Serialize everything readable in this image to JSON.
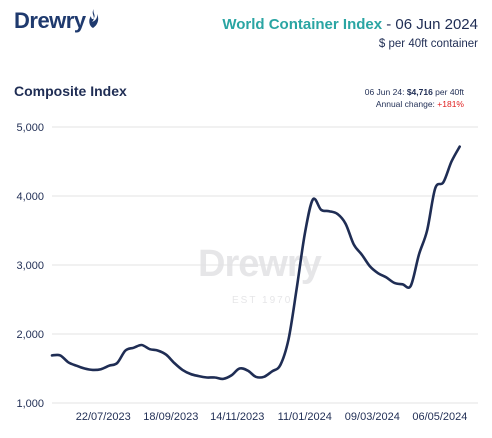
{
  "brand": {
    "logo_text": "Drewry",
    "flame_icon": "flame-icon"
  },
  "header": {
    "title": "World Container Index",
    "title_sep": " - ",
    "title_date": "06 Jun 2024",
    "subtitle": "$ per 40ft container"
  },
  "section": {
    "title": "Composite Index"
  },
  "info": {
    "date": "06 Jun 24:",
    "value": "$4,716",
    "unit": " per 40ft",
    "change_label": "Annual change:",
    "change_value": "+181%"
  },
  "watermark": {
    "text": "Drewry",
    "sub": "EST 1970"
  },
  "colors": {
    "accent": "#2aa5a3",
    "line": "#1f2d54",
    "positive": "#e02020",
    "grid": "#e3e3e3"
  },
  "chart_data": {
    "type": "line",
    "title": "Composite Index",
    "xlabel": "",
    "ylabel": "",
    "ylim": [
      1000,
      5000
    ],
    "yticks": [
      "5,000",
      "4,000",
      "3,000",
      "2,000",
      "1,000"
    ],
    "ytick_values": [
      5000,
      4000,
      3000,
      2000,
      1000
    ],
    "xtick_labels": [
      "22/07/2023",
      "18/09/2023",
      "14/11/2023",
      "11/01/2024",
      "09/03/2024",
      "06/05/2024"
    ],
    "xlim": [
      "2023-06-08",
      "2024-06-06"
    ],
    "series": [
      {
        "name": "Composite Index",
        "points": [
          [
            "2023-06-08",
            1690
          ],
          [
            "2023-06-15",
            1690
          ],
          [
            "2023-06-22",
            1590
          ],
          [
            "2023-06-29",
            1540
          ],
          [
            "2023-07-06",
            1500
          ],
          [
            "2023-07-13",
            1480
          ],
          [
            "2023-07-20",
            1490
          ],
          [
            "2023-07-27",
            1540
          ],
          [
            "2023-08-03",
            1580
          ],
          [
            "2023-08-10",
            1760
          ],
          [
            "2023-08-17",
            1800
          ],
          [
            "2023-08-24",
            1840
          ],
          [
            "2023-08-31",
            1780
          ],
          [
            "2023-09-07",
            1760
          ],
          [
            "2023-09-14",
            1700
          ],
          [
            "2023-09-21",
            1580
          ],
          [
            "2023-09-28",
            1480
          ],
          [
            "2023-10-05",
            1420
          ],
          [
            "2023-10-12",
            1390
          ],
          [
            "2023-10-19",
            1370
          ],
          [
            "2023-10-26",
            1370
          ],
          [
            "2023-11-02",
            1350
          ],
          [
            "2023-11-09",
            1400
          ],
          [
            "2023-11-16",
            1500
          ],
          [
            "2023-11-23",
            1470
          ],
          [
            "2023-11-30",
            1380
          ],
          [
            "2023-12-07",
            1380
          ],
          [
            "2023-12-14",
            1460
          ],
          [
            "2023-12-21",
            1550
          ],
          [
            "2023-12-28",
            1920
          ],
          [
            "2024-01-04",
            2650
          ],
          [
            "2024-01-11",
            3450
          ],
          [
            "2024-01-18",
            3950
          ],
          [
            "2024-01-25",
            3800
          ],
          [
            "2024-02-01",
            3780
          ],
          [
            "2024-02-08",
            3740
          ],
          [
            "2024-02-15",
            3600
          ],
          [
            "2024-02-22",
            3300
          ],
          [
            "2024-02-29",
            3150
          ],
          [
            "2024-03-07",
            2980
          ],
          [
            "2024-03-14",
            2880
          ],
          [
            "2024-03-21",
            2820
          ],
          [
            "2024-03-28",
            2740
          ],
          [
            "2024-04-04",
            2720
          ],
          [
            "2024-04-11",
            2700
          ],
          [
            "2024-04-18",
            3150
          ],
          [
            "2024-04-25",
            3500
          ],
          [
            "2024-05-02",
            4110
          ],
          [
            "2024-05-09",
            4200
          ],
          [
            "2024-05-16",
            4500
          ],
          [
            "2024-05-23",
            4716
          ]
        ]
      }
    ],
    "grid": true,
    "legend": "none"
  }
}
